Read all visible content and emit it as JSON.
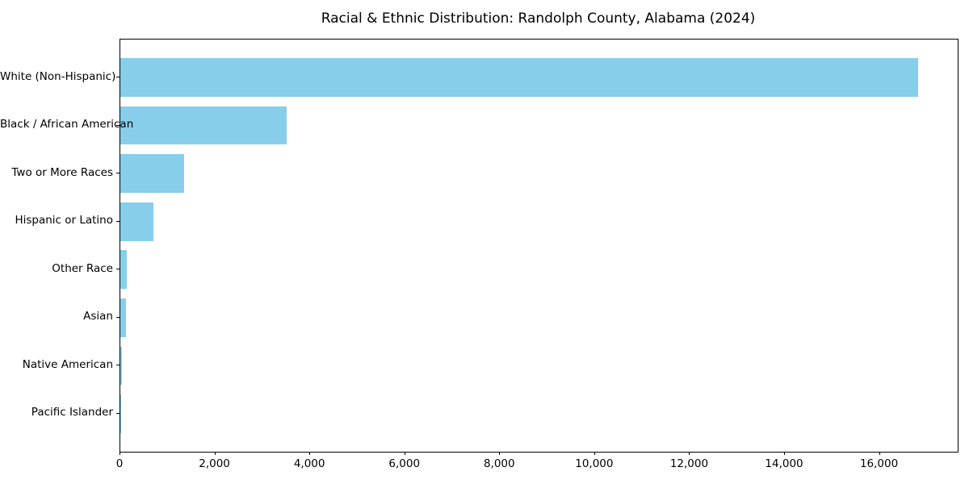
{
  "title": "Racial & Ethnic Distribution: Randolph County, Alabama (2024)",
  "chart_data": {
    "type": "bar",
    "orientation": "horizontal",
    "title": "Racial & Ethnic Distribution: Randolph County, Alabama (2024)",
    "xlabel": "",
    "ylabel": "",
    "categories": [
      "White (Non-Hispanic)",
      "Black / African American",
      "Two or More Races",
      "Hispanic or Latino",
      "Other Race",
      "Asian",
      "Native American",
      "Pacific Islander"
    ],
    "values": [
      16800,
      3500,
      1340,
      690,
      140,
      120,
      30,
      10
    ],
    "xlim": [
      0,
      17640
    ],
    "xticks": [
      0,
      2000,
      4000,
      6000,
      8000,
      10000,
      12000,
      14000,
      16000
    ],
    "xtick_labels": [
      "0",
      "2,000",
      "4,000",
      "6,000",
      "8,000",
      "10,000",
      "12,000",
      "14,000",
      "16,000"
    ],
    "grid": false,
    "legend": "none",
    "bar_color": "#87CEEB",
    "spine_color": "#000000",
    "text_color": "#000000",
    "background_color": "#ffffff"
  }
}
